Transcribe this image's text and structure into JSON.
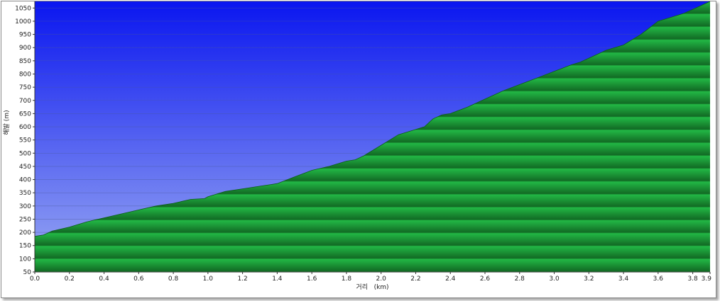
{
  "chart_data": {
    "type": "area",
    "xlabel": "거리   (km)",
    "ylabel": "해발 (m)",
    "xlim": [
      0,
      3.9
    ],
    "ylim": [
      50,
      1075
    ],
    "x_ticks": [
      "0.0",
      "0.2",
      "0.4",
      "0.6",
      "0.8",
      "1.0",
      "1.2",
      "1.4",
      "1.6",
      "1.8",
      "2.0",
      "2.2",
      "2.4",
      "2.6",
      "2.8",
      "3.0",
      "3.2",
      "3.4",
      "3.6",
      "3.8",
      "3.9"
    ],
    "y_ticks": [
      "50",
      "100",
      "150",
      "200",
      "250",
      "300",
      "350",
      "400",
      "450",
      "500",
      "550",
      "600",
      "650",
      "700",
      "750",
      "800",
      "850",
      "900",
      "950",
      "1000",
      "1050"
    ],
    "grid": true,
    "series": [
      {
        "x": [
          0.0,
          0.05,
          0.1,
          0.2,
          0.3,
          0.4,
          0.5,
          0.6,
          0.7,
          0.8,
          0.9,
          0.98,
          1.0,
          1.1,
          1.2,
          1.3,
          1.4,
          1.5,
          1.6,
          1.7,
          1.8,
          1.85,
          1.9,
          2.0,
          2.05,
          2.1,
          2.2,
          2.25,
          2.3,
          2.35,
          2.4,
          2.5,
          2.6,
          2.7,
          2.8,
          2.9,
          3.0,
          3.1,
          3.15,
          3.2,
          3.3,
          3.4,
          3.5,
          3.6,
          3.65,
          3.7,
          3.75,
          3.8,
          3.85,
          3.9
        ],
        "y": [
          185,
          190,
          205,
          220,
          240,
          255,
          270,
          285,
          300,
          310,
          325,
          328,
          335,
          355,
          365,
          375,
          385,
          410,
          435,
          450,
          470,
          475,
          490,
          530,
          550,
          570,
          590,
          600,
          630,
          645,
          650,
          675,
          705,
          735,
          760,
          785,
          810,
          835,
          845,
          860,
          890,
          910,
          950,
          1000,
          1010,
          1020,
          1030,
          1045,
          1060,
          1075
        ],
        "fill": "#1faa3a"
      }
    ],
    "colors": {
      "sky_top": "#0a16f0",
      "sky_bottom": "#9aaaf2",
      "ground_light": "#22b845",
      "ground_dark": "#126a24",
      "grid": "#4a5a9a"
    }
  }
}
